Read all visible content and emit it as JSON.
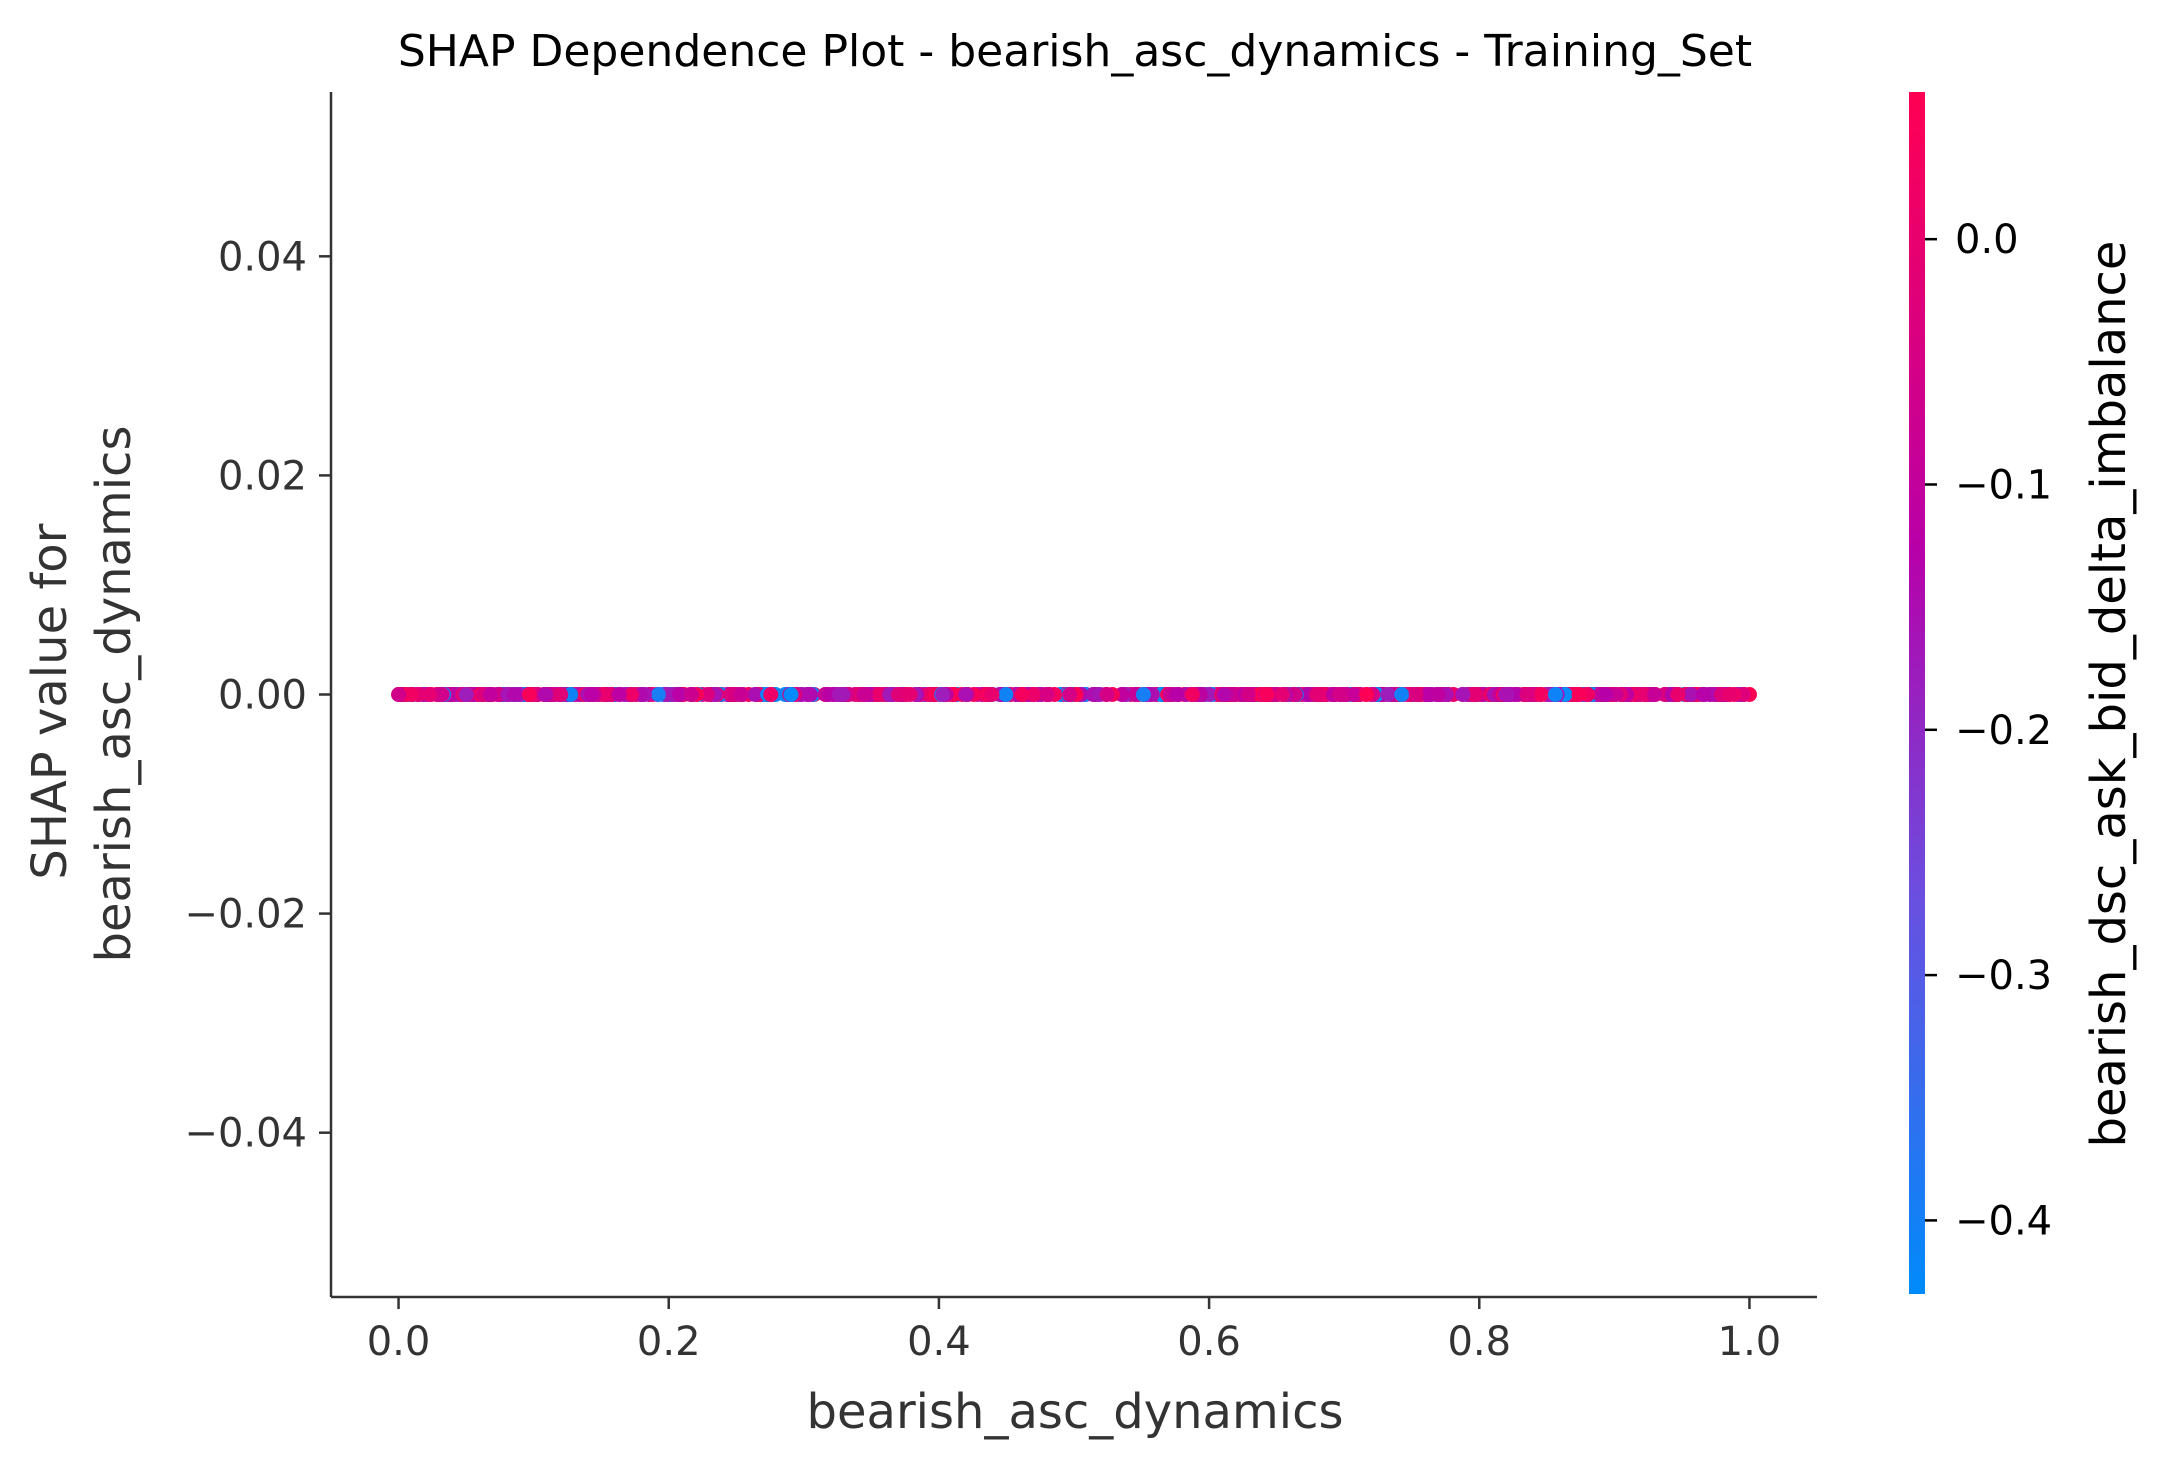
{
  "chart_data": {
    "type": "scatter",
    "title": "SHAP Dependence Plot - bearish_asc_dynamics - Training_Set",
    "xlabel": "bearish_asc_dynamics",
    "ylabel_lines": [
      "SHAP value for",
      "bearish_asc_dynamics"
    ],
    "xlim": [
      -0.05,
      1.05
    ],
    "ylim": [
      -0.055,
      0.055
    ],
    "xticks": [
      0.0,
      0.2,
      0.4,
      0.6,
      0.8,
      1.0
    ],
    "xtick_labels": [
      "0.0",
      "0.2",
      "0.4",
      "0.6",
      "0.8",
      "1.0"
    ],
    "yticks": [
      0.04,
      0.02,
      0.0,
      -0.02,
      -0.04
    ],
    "ytick_labels": [
      "0.04",
      "0.02",
      "0.00",
      "−0.02",
      "−0.04"
    ],
    "grid": false,
    "points": {
      "y": 0.0,
      "x_range": [
        0.0,
        1.0
      ],
      "color_feature": "bearish_dsc_ask_bid_delta_imbalance",
      "color_range": [
        -0.43,
        0.06
      ]
    },
    "colorbar": {
      "label": "bearish_dsc_ask_bid_delta_imbalance",
      "ticks": [
        0.0,
        -0.1,
        -0.2,
        -0.3,
        -0.4
      ],
      "tick_labels": [
        "0.0",
        "−0.1",
        "−0.2",
        "−0.3",
        "−0.4"
      ],
      "range": [
        -0.43,
        0.06
      ],
      "colors": [
        "#008bfb",
        "#7a47d6",
        "#b800a8",
        "#ff0052"
      ]
    }
  }
}
